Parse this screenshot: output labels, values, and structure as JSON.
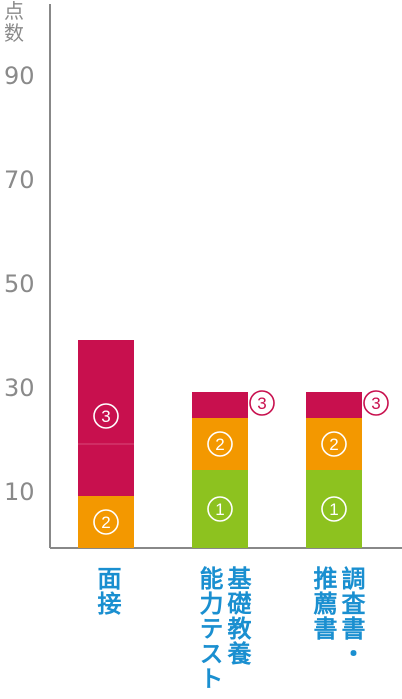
{
  "chart_data": {
    "type": "bar",
    "stacked": true,
    "ylabel": "点数",
    "yticks": [
      "10",
      "30",
      "50",
      "70",
      "90"
    ],
    "ylim": [
      0,
      105
    ],
    "categories": [
      "面接",
      "基礎教養能力テスト",
      "調査書・推薦書"
    ],
    "category_lines": [
      [
        "面接"
      ],
      [
        "基礎教養",
        "能力テスト"
      ],
      [
        "調査書・",
        "推薦書"
      ]
    ],
    "series": [
      {
        "marker": "①",
        "color": "#8dc21f",
        "values": [
          0,
          15,
          15
        ]
      },
      {
        "marker": "②",
        "color": "#f39800",
        "values": [
          10,
          10,
          10
        ]
      },
      {
        "marker": "③",
        "color": "#c8104e",
        "values": [
          30,
          5,
          5
        ]
      }
    ],
    "segment_markers": [
      [
        null,
        "②",
        "③"
      ],
      [
        "①",
        "②",
        "③"
      ],
      [
        "①",
        "②",
        "③"
      ]
    ],
    "grid": false
  }
}
